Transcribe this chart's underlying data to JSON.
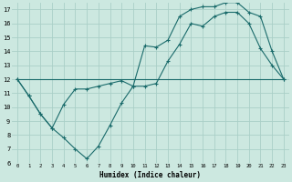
{
  "xlabel": "Humidex (Indice chaleur)",
  "bg_color": "#cce8e0",
  "line_color": "#1a6b6b",
  "grid_color": "#aacfc7",
  "xlim": [
    -0.5,
    23.5
  ],
  "ylim": [
    6,
    17.5
  ],
  "xticks": [
    0,
    1,
    2,
    3,
    4,
    5,
    6,
    7,
    8,
    9,
    10,
    11,
    12,
    13,
    14,
    15,
    16,
    17,
    18,
    19,
    20,
    21,
    22,
    23
  ],
  "yticks": [
    6,
    7,
    8,
    9,
    10,
    11,
    12,
    13,
    14,
    15,
    16,
    17
  ],
  "line1_x": [
    0,
    1,
    2,
    3,
    4,
    5,
    6,
    7,
    8,
    9,
    10,
    11,
    12,
    13,
    14,
    15,
    16,
    17,
    18,
    19,
    20,
    21,
    22,
    23
  ],
  "line1_y": [
    12,
    10.8,
    9.5,
    8.5,
    7.8,
    7.0,
    6.3,
    7.2,
    8.7,
    10.3,
    11.5,
    11.5,
    11.7,
    13.3,
    14.5,
    16.0,
    15.8,
    16.5,
    16.8,
    16.8,
    16.0,
    14.2,
    13.0,
    12.0
  ],
  "line2_x": [
    0,
    1,
    2,
    3,
    4,
    5,
    6,
    7,
    8,
    9,
    10,
    11,
    12,
    13,
    14,
    15,
    16,
    17,
    18,
    19,
    20,
    21,
    22,
    23
  ],
  "line2_y": [
    12,
    10.8,
    9.5,
    8.5,
    10.2,
    11.3,
    11.3,
    11.5,
    11.7,
    11.9,
    11.5,
    14.4,
    14.3,
    14.8,
    16.5,
    17.0,
    17.2,
    17.2,
    17.5,
    17.5,
    16.8,
    16.5,
    14.0,
    12.0
  ],
  "line3_x": [
    0,
    23
  ],
  "line3_y": [
    12,
    12
  ]
}
